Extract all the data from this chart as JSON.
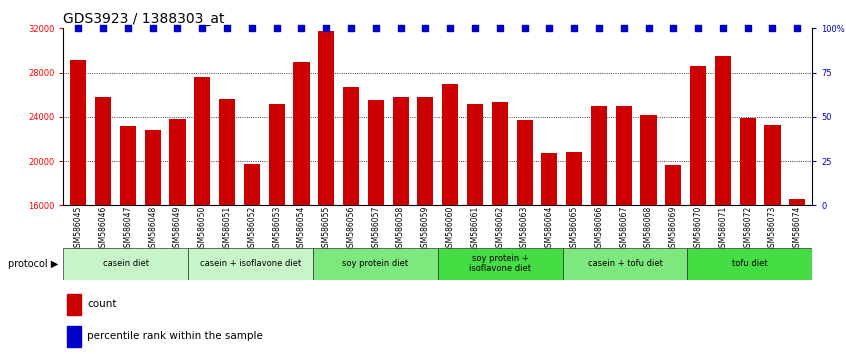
{
  "title": "GDS3923 / 1388303_at",
  "samples": [
    "GSM586045",
    "GSM586046",
    "GSM586047",
    "GSM586048",
    "GSM586049",
    "GSM586050",
    "GSM586051",
    "GSM586052",
    "GSM586053",
    "GSM586054",
    "GSM586055",
    "GSM586056",
    "GSM586057",
    "GSM586058",
    "GSM586059",
    "GSM586060",
    "GSM586061",
    "GSM586062",
    "GSM586063",
    "GSM586064",
    "GSM586065",
    "GSM586066",
    "GSM586067",
    "GSM586068",
    "GSM586069",
    "GSM586070",
    "GSM586071",
    "GSM586072",
    "GSM586073",
    "GSM586074"
  ],
  "values": [
    29100,
    25800,
    23200,
    22800,
    23800,
    27600,
    25600,
    19700,
    25200,
    29000,
    31800,
    26700,
    25500,
    25800,
    25800,
    27000,
    25200,
    25300,
    23700,
    20700,
    20800,
    25000,
    25000,
    24200,
    19600,
    28600,
    29500,
    23900,
    23300,
    16600
  ],
  "percentile_values": [
    100,
    100,
    100,
    100,
    100,
    100,
    100,
    100,
    100,
    100,
    100,
    100,
    100,
    100,
    100,
    100,
    100,
    100,
    100,
    100,
    100,
    100,
    100,
    100,
    100,
    100,
    100,
    100,
    100,
    100
  ],
  "groups": [
    {
      "label": "casein diet",
      "start": 0,
      "end": 4,
      "color": "#c8f5c8"
    },
    {
      "label": "casein + isoflavone diet",
      "start": 5,
      "end": 9,
      "color": "#c8f5c8"
    },
    {
      "label": "soy protein diet",
      "start": 10,
      "end": 14,
      "color": "#7de87d"
    },
    {
      "label": "soy protein +\nisoflavone diet",
      "start": 15,
      "end": 19,
      "color": "#44dd44"
    },
    {
      "label": "casein + tofu diet",
      "start": 20,
      "end": 24,
      "color": "#7de87d"
    },
    {
      "label": "tofu diet",
      "start": 25,
      "end": 29,
      "color": "#44dd44"
    }
  ],
  "bar_color": "#cc0000",
  "percentile_color": "#0000cc",
  "ymin": 16000,
  "ymax": 32000,
  "yticks_left": [
    16000,
    20000,
    24000,
    28000,
    32000
  ],
  "yticks_right": [
    0,
    25,
    50,
    75,
    100
  ],
  "grid_lines": [
    20000,
    24000,
    28000
  ],
  "background_color": "#ffffff",
  "title_fontsize": 10,
  "bar_tick_fontsize": 6,
  "sample_tick_fontsize": 5.5
}
